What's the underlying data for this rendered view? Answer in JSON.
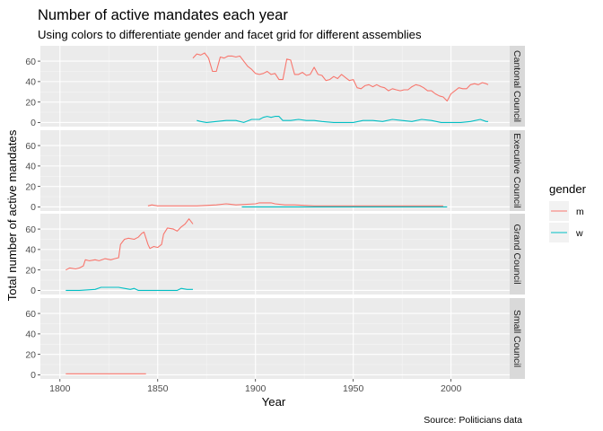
{
  "chart_data": {
    "type": "line",
    "title": "Number of active mandates each year",
    "subtitle": "Using colors to differentiate gender and facet grid for different assemblies",
    "xlabel": "Year",
    "ylabel": "Total number of active mandates",
    "caption": "Source: Politicians data",
    "xlim": [
      1790,
      2030
    ],
    "ylim": [
      -4,
      75
    ],
    "x_ticks": [
      1800,
      1850,
      1900,
      1950,
      2000
    ],
    "y_ticks": [
      0,
      20,
      40,
      60
    ],
    "grid": true,
    "legend": {
      "title": "gender",
      "position": "right",
      "entries": [
        {
          "label": "m",
          "color": "#F8766D"
        },
        {
          "label": "w",
          "color": "#00BFC4"
        }
      ]
    },
    "panels": [
      {
        "label": "Cantonal Council",
        "series": [
          {
            "name": "m",
            "color": "#F8766D",
            "points": [
              [
                1868,
                63
              ],
              [
                1870,
                67
              ],
              [
                1872,
                66
              ],
              [
                1874,
                68
              ],
              [
                1876,
                63
              ],
              [
                1878,
                50
              ],
              [
                1880,
                50
              ],
              [
                1882,
                64
              ],
              [
                1884,
                63
              ],
              [
                1886,
                65
              ],
              [
                1888,
                65
              ],
              [
                1890,
                64
              ],
              [
                1892,
                65
              ],
              [
                1894,
                60
              ],
              [
                1896,
                55
              ],
              [
                1898,
                52
              ],
              [
                1900,
                48
              ],
              [
                1902,
                47
              ],
              [
                1904,
                48
              ],
              [
                1906,
                50
              ],
              [
                1908,
                47
              ],
              [
                1910,
                48
              ],
              [
                1912,
                42
              ],
              [
                1914,
                42
              ],
              [
                1916,
                62
              ],
              [
                1918,
                61
              ],
              [
                1920,
                47
              ],
              [
                1922,
                47
              ],
              [
                1924,
                49
              ],
              [
                1926,
                46
              ],
              [
                1928,
                47
              ],
              [
                1930,
                54
              ],
              [
                1932,
                47
              ],
              [
                1934,
                46
              ],
              [
                1936,
                41
              ],
              [
                1938,
                42
              ],
              [
                1940,
                45
              ],
              [
                1942,
                43
              ],
              [
                1944,
                47
              ],
              [
                1946,
                44
              ],
              [
                1948,
                41
              ],
              [
                1950,
                42
              ],
              [
                1952,
                34
              ],
              [
                1954,
                33
              ],
              [
                1956,
                36
              ],
              [
                1958,
                37
              ],
              [
                1960,
                35
              ],
              [
                1962,
                37
              ],
              [
                1964,
                35
              ],
              [
                1966,
                34
              ],
              [
                1968,
                31
              ],
              [
                1970,
                33
              ],
              [
                1972,
                32
              ],
              [
                1974,
                31
              ],
              [
                1976,
                32
              ],
              [
                1978,
                32
              ],
              [
                1980,
                35
              ],
              [
                1982,
                37
              ],
              [
                1984,
                36
              ],
              [
                1986,
                34
              ],
              [
                1988,
                31
              ],
              [
                1990,
                31
              ],
              [
                1992,
                28
              ],
              [
                1994,
                26
              ],
              [
                1996,
                25
              ],
              [
                1998,
                21
              ],
              [
                2000,
                28
              ],
              [
                2002,
                31
              ],
              [
                2004,
                34
              ],
              [
                2006,
                33
              ],
              [
                2008,
                33
              ],
              [
                2010,
                37
              ],
              [
                2012,
                38
              ],
              [
                2014,
                37
              ],
              [
                2016,
                39
              ],
              [
                2018,
                38
              ],
              [
                2019,
                37
              ]
            ]
          },
          {
            "name": "w",
            "color": "#00BFC4",
            "points": [
              [
                1870,
                2
              ],
              [
                1872,
                1
              ],
              [
                1875,
                0
              ],
              [
                1880,
                1
              ],
              [
                1885,
                2
              ],
              [
                1890,
                2
              ],
              [
                1894,
                0
              ],
              [
                1898,
                3
              ],
              [
                1902,
                3
              ],
              [
                1904,
                5
              ],
              [
                1906,
                6
              ],
              [
                1908,
                5
              ],
              [
                1910,
                6
              ],
              [
                1912,
                6
              ],
              [
                1914,
                2
              ],
              [
                1918,
                2
              ],
              [
                1922,
                3
              ],
              [
                1926,
                2
              ],
              [
                1930,
                2
              ],
              [
                1934,
                1
              ],
              [
                1940,
                0
              ],
              [
                1950,
                0
              ],
              [
                1955,
                2
              ],
              [
                1960,
                2
              ],
              [
                1965,
                1
              ],
              [
                1970,
                3
              ],
              [
                1975,
                2
              ],
              [
                1980,
                1
              ],
              [
                1985,
                3
              ],
              [
                1990,
                2
              ],
              [
                1995,
                0
              ],
              [
                2005,
                0
              ],
              [
                2010,
                1
              ],
              [
                2015,
                3
              ],
              [
                2018,
                1
              ],
              [
                2019,
                1
              ]
            ]
          }
        ]
      },
      {
        "label": "Executive Council",
        "series": [
          {
            "name": "m",
            "color": "#F8766D",
            "points": [
              [
                1845,
                1
              ],
              [
                1847,
                2
              ],
              [
                1850,
                1
              ],
              [
                1870,
                1
              ],
              [
                1880,
                2
              ],
              [
                1885,
                3
              ],
              [
                1890,
                2
              ],
              [
                1900,
                3
              ],
              [
                1902,
                4
              ],
              [
                1908,
                4
              ],
              [
                1910,
                3
              ],
              [
                1915,
                2
              ],
              [
                1920,
                2
              ],
              [
                1930,
                1
              ],
              [
                1996,
                1
              ]
            ]
          },
          {
            "name": "w",
            "color": "#00BFC4",
            "points": [
              [
                1893,
                0
              ],
              [
                1998,
                0
              ]
            ]
          }
        ]
      },
      {
        "label": "Grand Council",
        "series": [
          {
            "name": "m",
            "color": "#F8766D",
            "points": [
              [
                1803,
                20
              ],
              [
                1805,
                22
              ],
              [
                1808,
                21
              ],
              [
                1810,
                22
              ],
              [
                1812,
                24
              ],
              [
                1813,
                30
              ],
              [
                1815,
                29
              ],
              [
                1818,
                30
              ],
              [
                1820,
                29
              ],
              [
                1823,
                31
              ],
              [
                1826,
                30
              ],
              [
                1828,
                31
              ],
              [
                1830,
                32
              ],
              [
                1831,
                45
              ],
              [
                1833,
                50
              ],
              [
                1835,
                51
              ],
              [
                1838,
                50
              ],
              [
                1840,
                52
              ],
              [
                1842,
                56
              ],
              [
                1843,
                57
              ],
              [
                1845,
                45
              ],
              [
                1846,
                41
              ],
              [
                1848,
                43
              ],
              [
                1850,
                42
              ],
              [
                1852,
                45
              ],
              [
                1853,
                55
              ],
              [
                1855,
                61
              ],
              [
                1858,
                60
              ],
              [
                1860,
                58
              ],
              [
                1862,
                62
              ],
              [
                1864,
                65
              ],
              [
                1866,
                70
              ],
              [
                1868,
                65
              ]
            ]
          },
          {
            "name": "w",
            "color": "#00BFC4",
            "points": [
              [
                1803,
                0
              ],
              [
                1810,
                0
              ],
              [
                1818,
                1
              ],
              [
                1821,
                3
              ],
              [
                1825,
                3
              ],
              [
                1830,
                3
              ],
              [
                1833,
                2
              ],
              [
                1836,
                1
              ],
              [
                1838,
                2
              ],
              [
                1840,
                0
              ],
              [
                1850,
                0
              ],
              [
                1860,
                0
              ],
              [
                1862,
                2
              ],
              [
                1865,
                1
              ],
              [
                1868,
                1
              ]
            ]
          }
        ]
      },
      {
        "label": "Small Council",
        "series": [
          {
            "name": "m",
            "color": "#F8766D",
            "points": [
              [
                1803,
                1
              ],
              [
                1844,
                1
              ]
            ]
          }
        ]
      }
    ]
  }
}
